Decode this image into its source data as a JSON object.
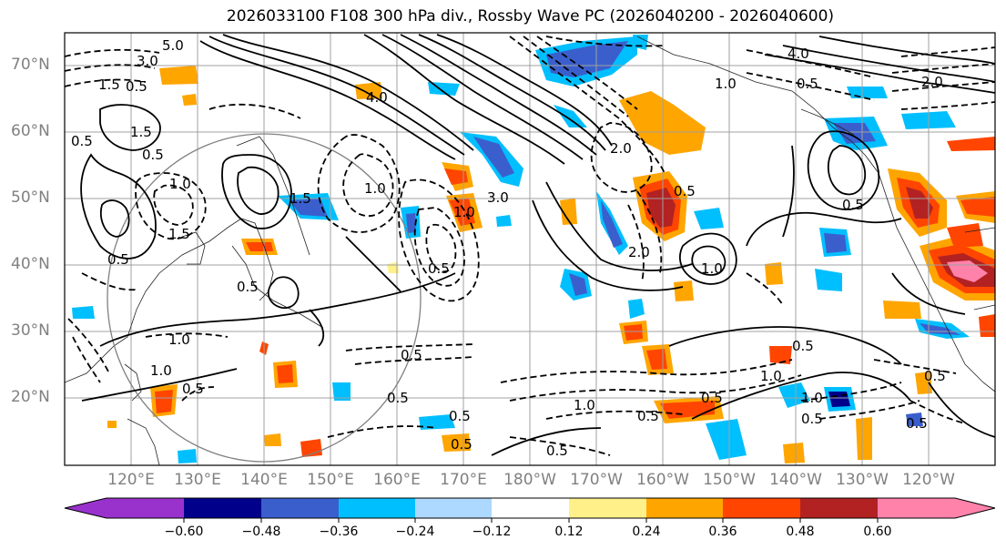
{
  "title": "2026033100 F108 300 hPa div., Rossby Wave PC (2026040200 - 2026040600)",
  "lat_labels": [
    "70°N",
    "60°N",
    "50°N",
    "40°N",
    "30°N",
    "20°N"
  ],
  "lon_labels": [
    "120°E",
    "130°E",
    "140°E",
    "150°E",
    "160°E",
    "170°E",
    "180°W",
    "170°W",
    "160°W",
    "150°W",
    "140°W",
    "130°W",
    "120°W"
  ],
  "colorbar": {
    "tick_labels": [
      "−0.60",
      "−0.48",
      "−0.36",
      "−0.24",
      "−0.12",
      "0.12",
      "0.24",
      "0.36",
      "0.48",
      "0.60"
    ],
    "colors": [
      "#9932cc",
      "#00008b",
      "#3a5fcd",
      "#00bfff",
      "#add8ff",
      "#ffffff",
      "#fff08a",
      "#ffa500",
      "#ff4500",
      "#b22222",
      "#ff82ab"
    ]
  },
  "contour_labels": [
    "5.0",
    "3.0",
    "1.5",
    "0.5",
    "4.0",
    "1.0",
    "0.5",
    "2.0",
    "1.5",
    "0.5",
    "1.5",
    "1.0",
    "0.5",
    "0.5",
    "1.5",
    "1.0",
    "0.5",
    "0.5",
    "3.0",
    "1.0",
    "4.0",
    "2.0",
    "2.0",
    "0.5",
    "1.0",
    "0.5",
    "0.5",
    "1.0",
    "0.5",
    "0.5",
    "0.5",
    "1.0",
    "1.0",
    "0.5",
    "0.5",
    "0.5",
    "1.0",
    "0.5",
    "1.0",
    "0.5",
    "0.5",
    "0.5",
    "0.5"
  ]
}
